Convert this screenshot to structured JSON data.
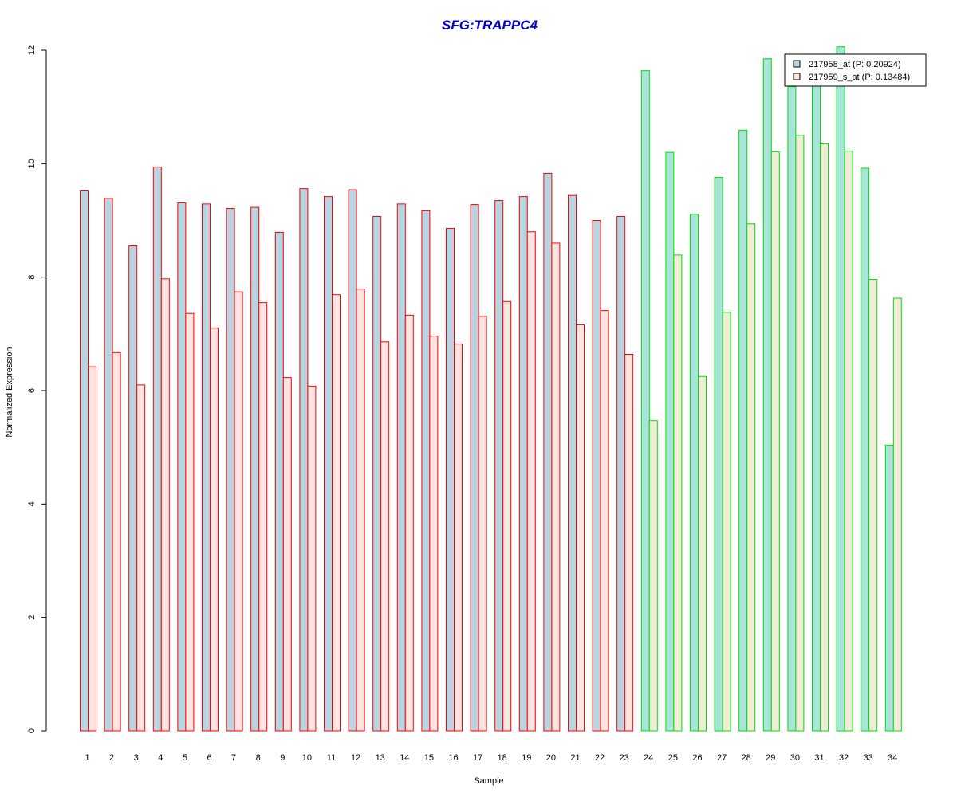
{
  "chart_data": {
    "type": "bar",
    "title": "SFG:TRAPPC4",
    "xlabel": "Sample",
    "ylabel": "Normalized Expression",
    "ylim": [
      0,
      12
    ],
    "yticks": [
      "0",
      "2",
      "4",
      "6",
      "8",
      "10",
      "12"
    ],
    "categories": [
      "1",
      "2",
      "3",
      "4",
      "5",
      "6",
      "7",
      "8",
      "9",
      "10",
      "11",
      "12",
      "13",
      "14",
      "15",
      "16",
      "17",
      "18",
      "19",
      "20",
      "21",
      "22",
      "23",
      "24",
      "25",
      "26",
      "27",
      "28",
      "29",
      "30",
      "31",
      "32",
      "33",
      "34"
    ],
    "series": [
      {
        "name": "217958_at (P: 0.20924)",
        "values": [
          9.52,
          9.39,
          8.55,
          9.94,
          9.31,
          9.29,
          9.21,
          9.23,
          8.79,
          9.56,
          9.42,
          9.54,
          9.07,
          9.29,
          9.17,
          8.86,
          9.28,
          9.35,
          9.42,
          9.83,
          9.44,
          9.0,
          9.07,
          11.64,
          10.2,
          9.11,
          9.76,
          10.59,
          11.85,
          11.36,
          11.4,
          12.06,
          9.92,
          5.04
        ]
      },
      {
        "name": "217959_s_at (P: 0.13484)",
        "values": [
          6.42,
          6.67,
          6.1,
          7.97,
          7.36,
          7.1,
          7.74,
          7.55,
          6.23,
          6.08,
          7.69,
          7.79,
          6.86,
          7.33,
          6.96,
          6.82,
          7.31,
          7.57,
          8.8,
          8.6,
          7.16,
          7.41,
          6.64,
          5.47,
          8.39,
          6.25,
          7.38,
          8.94,
          10.21,
          10.5,
          10.35,
          10.22,
          7.96,
          7.63
        ]
      }
    ],
    "groups": [
      {
        "from": 1,
        "to": 23,
        "border": "#ff0000"
      },
      {
        "from": 24,
        "to": 34,
        "border": "#00e000"
      }
    ],
    "colors": {
      "title": "#0000cc",
      "group1_series1_fill": "#b8d4e0",
      "group1_series2_fill": "#ffe4e1",
      "group2_series1_fill": "#a8e4dc",
      "group2_series2_fill": "#f0ecd6",
      "legend_series1_fill": "#b8d4e0",
      "legend_series2_fill": "#ffe4e1"
    },
    "legend_position": "top-right",
    "grid": false
  }
}
